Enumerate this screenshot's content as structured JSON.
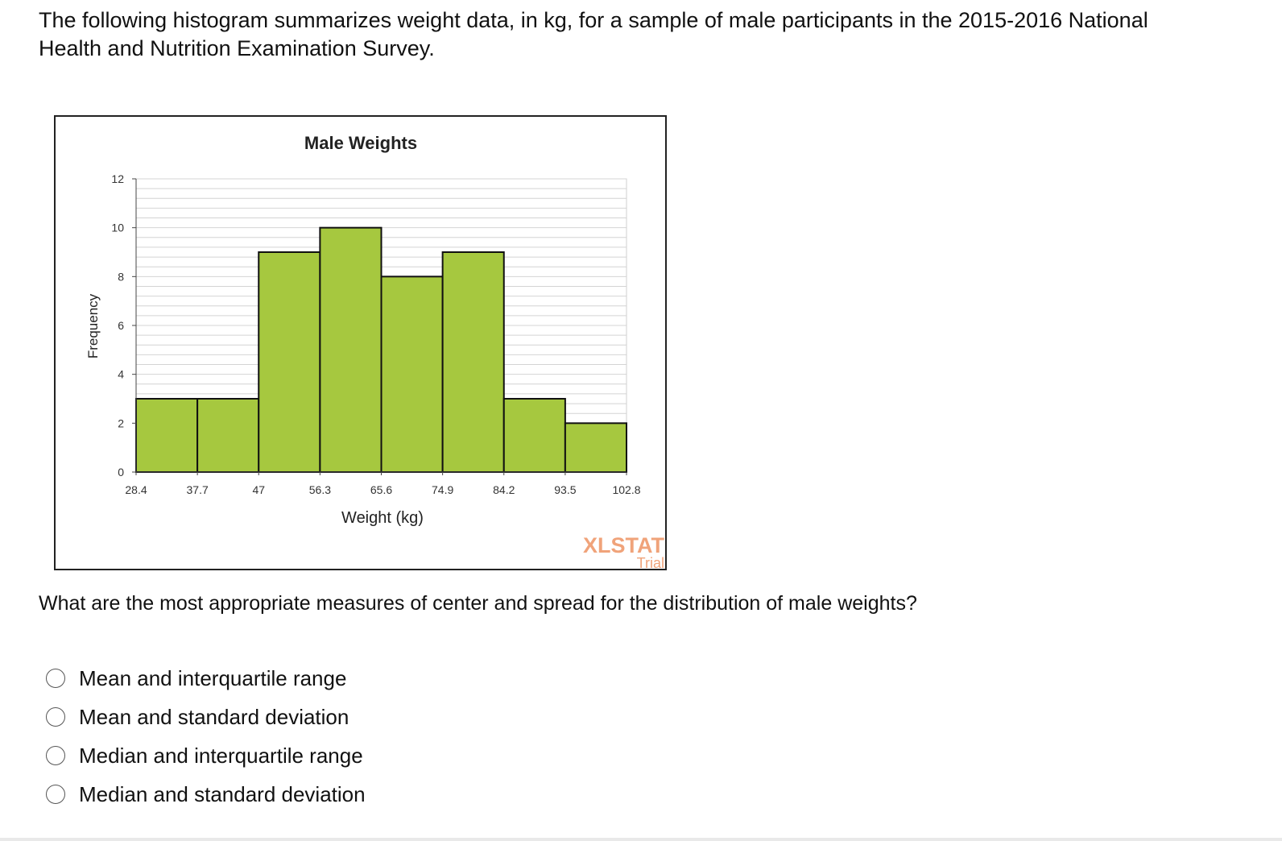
{
  "question": {
    "intro_text": "The following histogram summarizes weight data, in kg, for a sample of male participants in the 2015-2016 National Health and Nutrition Examination Survey.",
    "prompt_text": "What are the most appropriate measures of center and spread for the distribution of male weights?",
    "options": [
      {
        "label": "Mean and interquartile range",
        "selected": false
      },
      {
        "label": "Mean and standard deviation",
        "selected": false
      },
      {
        "label": "Median and interquartile range",
        "selected": false
      },
      {
        "label": "Median and standard deviation",
        "selected": false
      }
    ]
  },
  "watermark": {
    "brand": "XLSTAT",
    "sub": "Trial"
  },
  "colors": {
    "bar_fill": "#a6c83f",
    "bar_stroke": "#111111",
    "watermark": "#f0a37a"
  },
  "chart_data": {
    "type": "bar",
    "title": "Male Weights",
    "xlabel": "Weight (kg)",
    "ylabel": "Frequency",
    "bin_edges": [
      28.4,
      37.7,
      47,
      56.3,
      65.6,
      74.9,
      84.2,
      93.5,
      102.8
    ],
    "x_tick_labels": [
      "28.4",
      "37.7",
      "47",
      "56.3",
      "65.6",
      "74.9",
      "84.2",
      "93.5",
      "102.8"
    ],
    "values": [
      3,
      3,
      9,
      10,
      8,
      9,
      3,
      2
    ],
    "ylim": [
      0,
      12
    ],
    "y_ticks": [
      0,
      2,
      4,
      6,
      8,
      10,
      12
    ],
    "grid": true
  }
}
